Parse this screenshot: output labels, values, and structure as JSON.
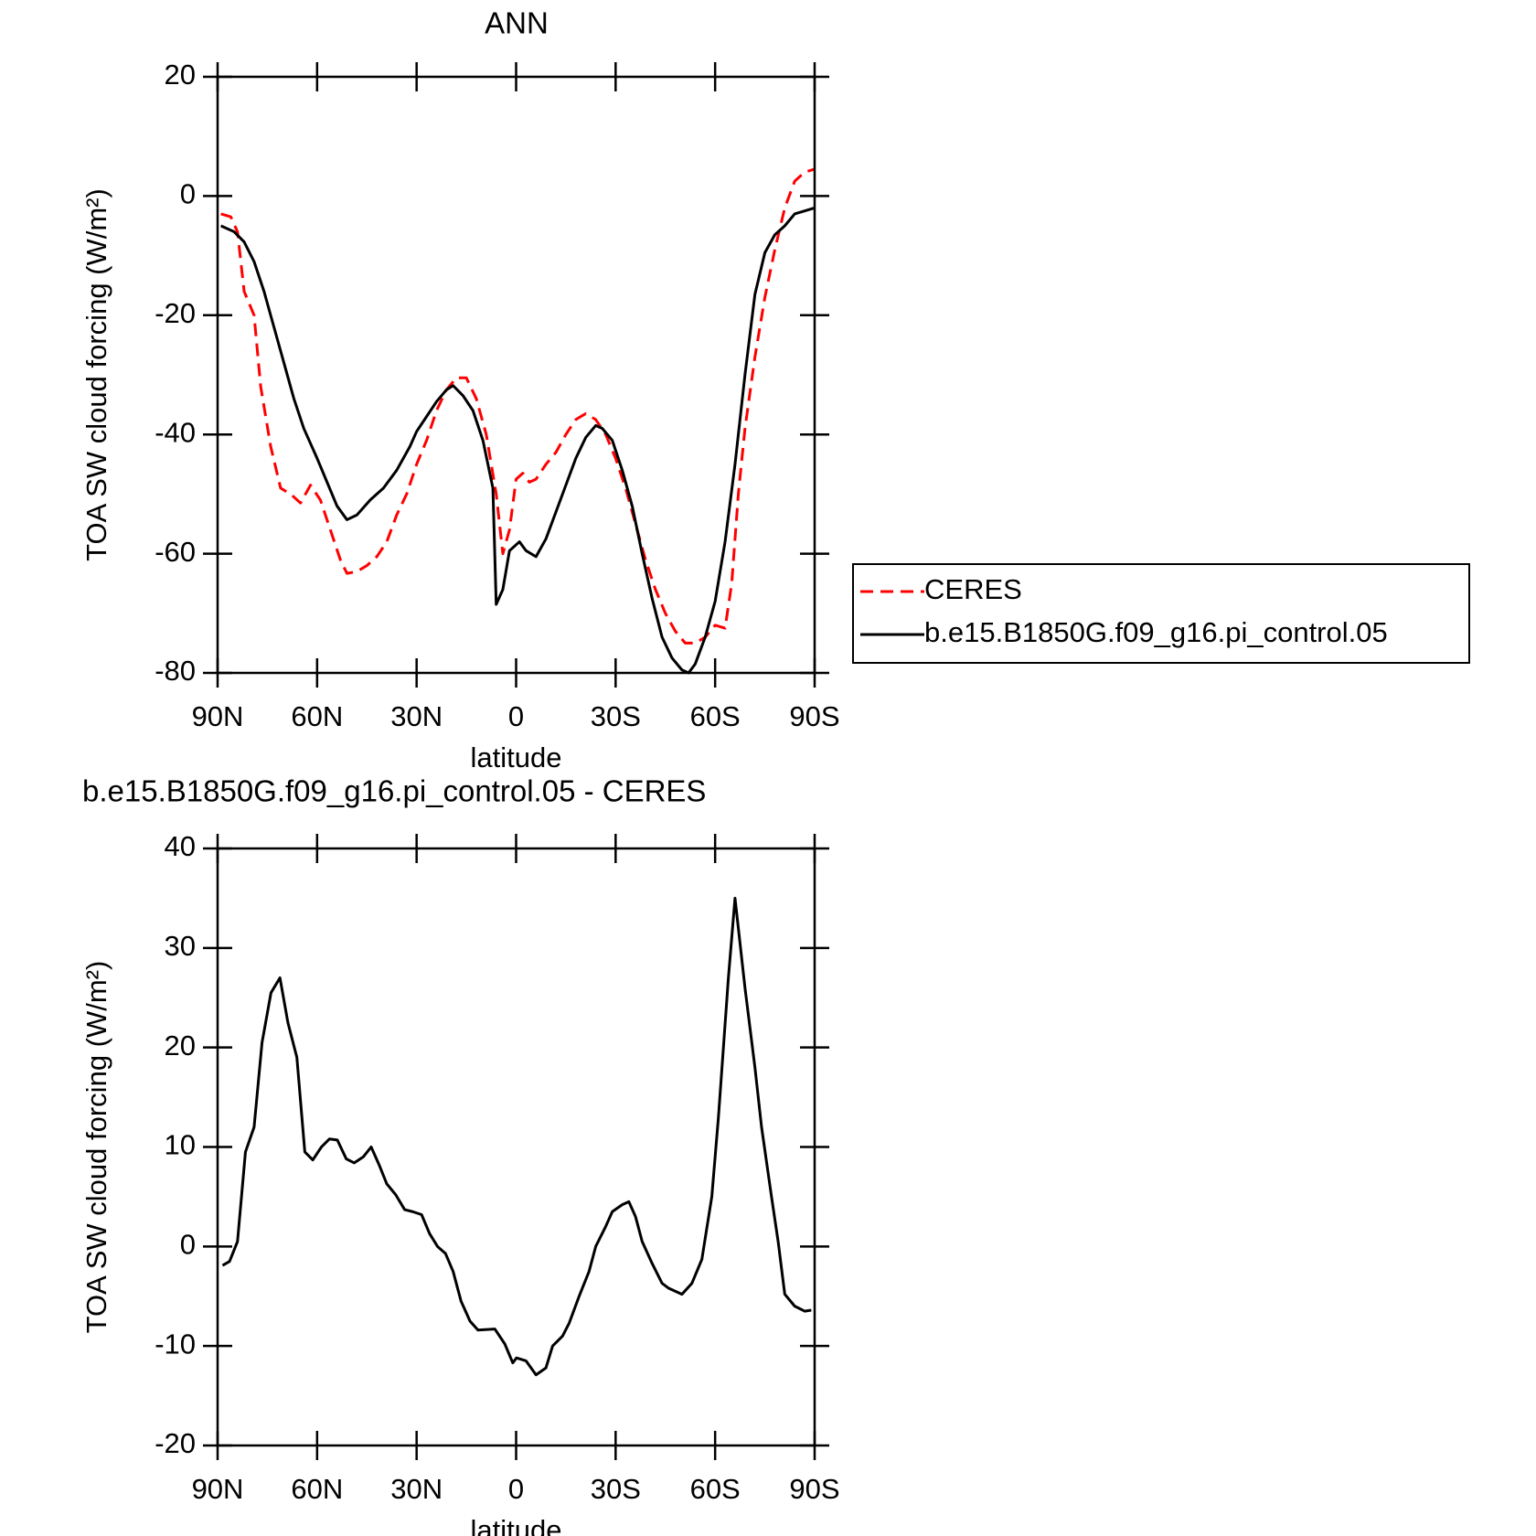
{
  "chart_data": [
    {
      "type": "line",
      "title": "ANN",
      "xlabel": "latitude",
      "ylabel": "TOA SW cloud forcing (W/m²)",
      "xlim": [
        90,
        -90
      ],
      "xticks": [
        {
          "value": 90,
          "label": "90N"
        },
        {
          "value": 60,
          "label": "60N"
        },
        {
          "value": 30,
          "label": "30N"
        },
        0,
        {
          "value": -30,
          "label": "30S"
        },
        {
          "value": -60,
          "label": "60S"
        },
        {
          "value": -90,
          "label": "90S"
        }
      ],
      "ylim": [
        -80,
        20
      ],
      "yticks": [
        20,
        0,
        -20,
        -40,
        -60,
        -80
      ],
      "legend": "right",
      "series": [
        {
          "name": "CERES",
          "color": "#ff0000",
          "dashed": true,
          "x": [
            89,
            86,
            84,
            82,
            79,
            77,
            74,
            71,
            68,
            65,
            62,
            59,
            56,
            53,
            51,
            48,
            45,
            42,
            39,
            36,
            33,
            30,
            27,
            24,
            21,
            18,
            15,
            12,
            9,
            6,
            4,
            2,
            0,
            -2,
            -4,
            -6,
            -9,
            -12,
            -15,
            -18,
            -21,
            -24,
            -27,
            -30,
            -33,
            -36,
            -39,
            -42,
            -45,
            -48,
            -51,
            -54,
            -57,
            -60,
            -63,
            -65,
            -67,
            -69,
            -72,
            -75,
            -78,
            -81,
            -84,
            -87,
            -90
          ],
          "values": [
            -3,
            -3.5,
            -6,
            -16,
            -20,
            -32,
            -42,
            -49,
            -50,
            -51.5,
            -48.5,
            -51,
            -56,
            -61,
            -63.3,
            -63,
            -62,
            -60.5,
            -58,
            -53.5,
            -50,
            -45,
            -41,
            -36,
            -32.5,
            -30.5,
            -30.5,
            -34,
            -40,
            -50,
            -60,
            -56,
            -47.5,
            -46.5,
            -48,
            -47.5,
            -45,
            -43,
            -40,
            -37.5,
            -36.5,
            -37.5,
            -40,
            -44,
            -49,
            -55,
            -61,
            -66,
            -70,
            -73,
            -75,
            -75,
            -74,
            -72,
            -72.5,
            -65,
            -50,
            -39,
            -27,
            -17,
            -9,
            -2,
            2.5,
            4,
            4.5
          ]
        },
        {
          "name": "b.e15.B1850G.f09_g16.pi_control.05",
          "color": "#000000",
          "dashed": false,
          "x": [
            89,
            85,
            82,
            79,
            76,
            73,
            70,
            67,
            64,
            60,
            57,
            54,
            51,
            48,
            44,
            40,
            36,
            32,
            30,
            27,
            24,
            21,
            19,
            16,
            13,
            10,
            7,
            6,
            4,
            2,
            -1,
            -3,
            -6,
            -9,
            -12,
            -15,
            -18,
            -21,
            -24,
            -26,
            -29,
            -32,
            -35,
            -38,
            -41,
            -44,
            -47,
            -50,
            -52,
            -54,
            -57,
            -60,
            -63,
            -66,
            -69,
            -72,
            -75,
            -78,
            -81,
            -84,
            -87,
            -90
          ],
          "values": [
            -5,
            -6,
            -7.7,
            -11,
            -16,
            -22,
            -28,
            -34,
            -39,
            -44,
            -48,
            -52,
            -54.3,
            -53.5,
            -51,
            -49,
            -46,
            -42,
            -39.5,
            -37,
            -34.5,
            -32.5,
            -31.8,
            -33.5,
            -36,
            -41,
            -49,
            -68.5,
            -66,
            -59.5,
            -58,
            -59.5,
            -60.5,
            -57.5,
            -53,
            -48.5,
            -44,
            -40.5,
            -38.5,
            -39,
            -41,
            -46,
            -52,
            -60,
            -67.5,
            -74,
            -77.5,
            -79.5,
            -80,
            -78.5,
            -74,
            -68,
            -58,
            -45,
            -30,
            -16.5,
            -9.5,
            -6.5,
            -5,
            -3,
            -2.5,
            -2
          ]
        }
      ]
    },
    {
      "type": "line",
      "title": "b.e15.B1850G.f09_g16.pi_control.05 - CERES",
      "xlabel": "latitude",
      "ylabel": "TOA SW cloud forcing (W/m²)",
      "xlim": [
        90,
        -90
      ],
      "xticks": [
        {
          "value": 90,
          "label": "90N"
        },
        {
          "value": 60,
          "label": "60N"
        },
        {
          "value": 30,
          "label": "30N"
        },
        0,
        {
          "value": -30,
          "label": "30S"
        },
        {
          "value": -60,
          "label": "60S"
        },
        {
          "value": -90,
          "label": "90S"
        }
      ],
      "ylim": [
        -20,
        40
      ],
      "yticks": [
        40,
        30,
        20,
        10,
        0,
        -10,
        -20
      ],
      "series": [
        {
          "color": "#000000",
          "dashed": false,
          "x": [
            88.5,
            86.4,
            84,
            81.6,
            79,
            76.6,
            73.9,
            71.2,
            68.8,
            66.1,
            63.7,
            61.3,
            58.7,
            56.3,
            53.9,
            51.2,
            48.8,
            46.1,
            43.7,
            41.3,
            39,
            36.3,
            33.6,
            31.2,
            28.5,
            26.1,
            23.7,
            21.3,
            19,
            16.6,
            13.9,
            11.5,
            6.4,
            3.4,
            1,
            -0.1,
            -3,
            -6,
            -9,
            -11,
            -14,
            -16,
            -19,
            -22,
            -24,
            -27,
            -29,
            -32,
            -34,
            -36,
            -38,
            -41,
            -44,
            -46,
            -50,
            -53,
            -56,
            -59,
            -61,
            -64,
            -66,
            -69,
            -72,
            -74,
            -77,
            -79,
            -81,
            -84,
            -87,
            -89
          ],
          "values": [
            -1.9,
            -1.5,
            0.5,
            9.5,
            12,
            20.5,
            25.5,
            27,
            22.5,
            19,
            9.5,
            8.7,
            10,
            10.8,
            10.7,
            8.8,
            8.4,
            9,
            10,
            8.2,
            6.3,
            5.2,
            3.7,
            3.5,
            3.2,
            1.3,
            0,
            -0.7,
            -2.5,
            -5.5,
            -7.5,
            -8.4,
            -8.3,
            -9.8,
            -11.7,
            -11.2,
            -11.5,
            -12.9,
            -12.2,
            -10,
            -9,
            -7.7,
            -5,
            -2.5,
            0,
            2,
            3.5,
            4.2,
            4.5,
            3,
            0.5,
            -1.7,
            -3.7,
            -4.2,
            -4.8,
            -3.7,
            -1.3,
            5,
            13,
            27,
            35,
            26,
            18,
            12,
            5,
            0.5,
            -4.8,
            -6,
            -6.5,
            -6.4
          ]
        }
      ]
    }
  ]
}
